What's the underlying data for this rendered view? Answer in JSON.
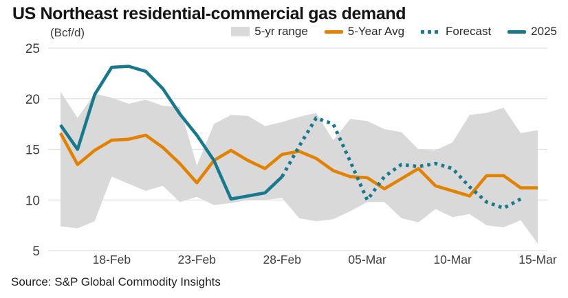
{
  "title": "US Northeast residential-commercial gas demand",
  "units_label": "(Bcf/d)",
  "source": "Source: S&P Global Commodity Insights",
  "chart_data": {
    "type": "line",
    "title": "US Northeast residential-commercial gas demand",
    "ylabel": "(Bcf/d)",
    "grid": true,
    "legend_position": "top",
    "ylim": [
      5,
      25
    ],
    "y_ticks": [
      25,
      20,
      15,
      10,
      5
    ],
    "x": [
      "15-Feb",
      "16-Feb",
      "17-Feb",
      "18-Feb",
      "19-Feb",
      "20-Feb",
      "21-Feb",
      "22-Feb",
      "23-Feb",
      "24-Feb",
      "25-Feb",
      "26-Feb",
      "27-Feb",
      "28-Feb",
      "01-Mar",
      "02-Mar",
      "03-Mar",
      "04-Mar",
      "05-Mar",
      "06-Mar",
      "07-Mar",
      "08-Mar",
      "09-Mar",
      "10-Mar",
      "11-Mar",
      "12-Mar",
      "13-Mar",
      "14-Mar",
      "15-Mar"
    ],
    "x_tick_labels": [
      "18-Feb",
      "23-Feb",
      "28-Feb",
      "05-Mar",
      "10-Mar",
      "15-Mar"
    ],
    "x_tick_indices": [
      3,
      8,
      13,
      18,
      23,
      28
    ],
    "axis_text_color": "#3d3d3d",
    "gridline_color": "#e2e2e2",
    "series": [
      {
        "name": "5-yr range",
        "type": "band",
        "color": "#d9d9d9",
        "upper": [
          20.7,
          18.1,
          20.5,
          20.1,
          19.5,
          19.9,
          19.3,
          19.2,
          13.4,
          17.5,
          18.4,
          18.3,
          17.3,
          17.7,
          18.2,
          18.6,
          15.9,
          18.0,
          17.8,
          17.0,
          16.7,
          15.0,
          14.9,
          15.7,
          18.4,
          18.6,
          19.1,
          16.6,
          16.9
        ],
        "lower": [
          7.4,
          7.2,
          7.9,
          12.3,
          11.6,
          10.9,
          11.4,
          9.8,
          10.3,
          9.5,
          9.7,
          10.0,
          10.0,
          10.2,
          8.2,
          7.9,
          8.1,
          8.9,
          9.8,
          9.8,
          8.2,
          7.8,
          9.1,
          8.3,
          8.6,
          7.5,
          7.3,
          8.0,
          5.7
        ]
      },
      {
        "name": "5-Year Avg",
        "type": "line",
        "color": "#e28200",
        "start_index": 0,
        "values": [
          16.6,
          13.5,
          14.9,
          15.9,
          16.0,
          16.4,
          15.2,
          13.6,
          11.7,
          13.9,
          14.9,
          13.9,
          13.1,
          14.5,
          14.8,
          14.1,
          12.9,
          12.3,
          12.2,
          11.1,
          12.1,
          13.1,
          11.4,
          10.9,
          10.4,
          12.4,
          12.4,
          11.2,
          11.2
        ]
      },
      {
        "name": "Forecast",
        "type": "dotted-line",
        "color": "#17798e",
        "start_index": 13,
        "values": [
          12.3,
          15.3,
          18.1,
          17.5,
          13.8,
          10.0,
          12.3,
          13.5,
          13.3,
          13.6,
          13.1,
          11.3,
          9.8,
          9.2,
          10.1
        ]
      },
      {
        "name": "2025",
        "type": "line",
        "color": "#17798e",
        "start_index": 0,
        "values": [
          17.4,
          15.0,
          20.4,
          23.1,
          23.2,
          22.7,
          21.0,
          18.5,
          16.4,
          13.9,
          10.1,
          10.4,
          10.7,
          12.3
        ]
      }
    ]
  }
}
